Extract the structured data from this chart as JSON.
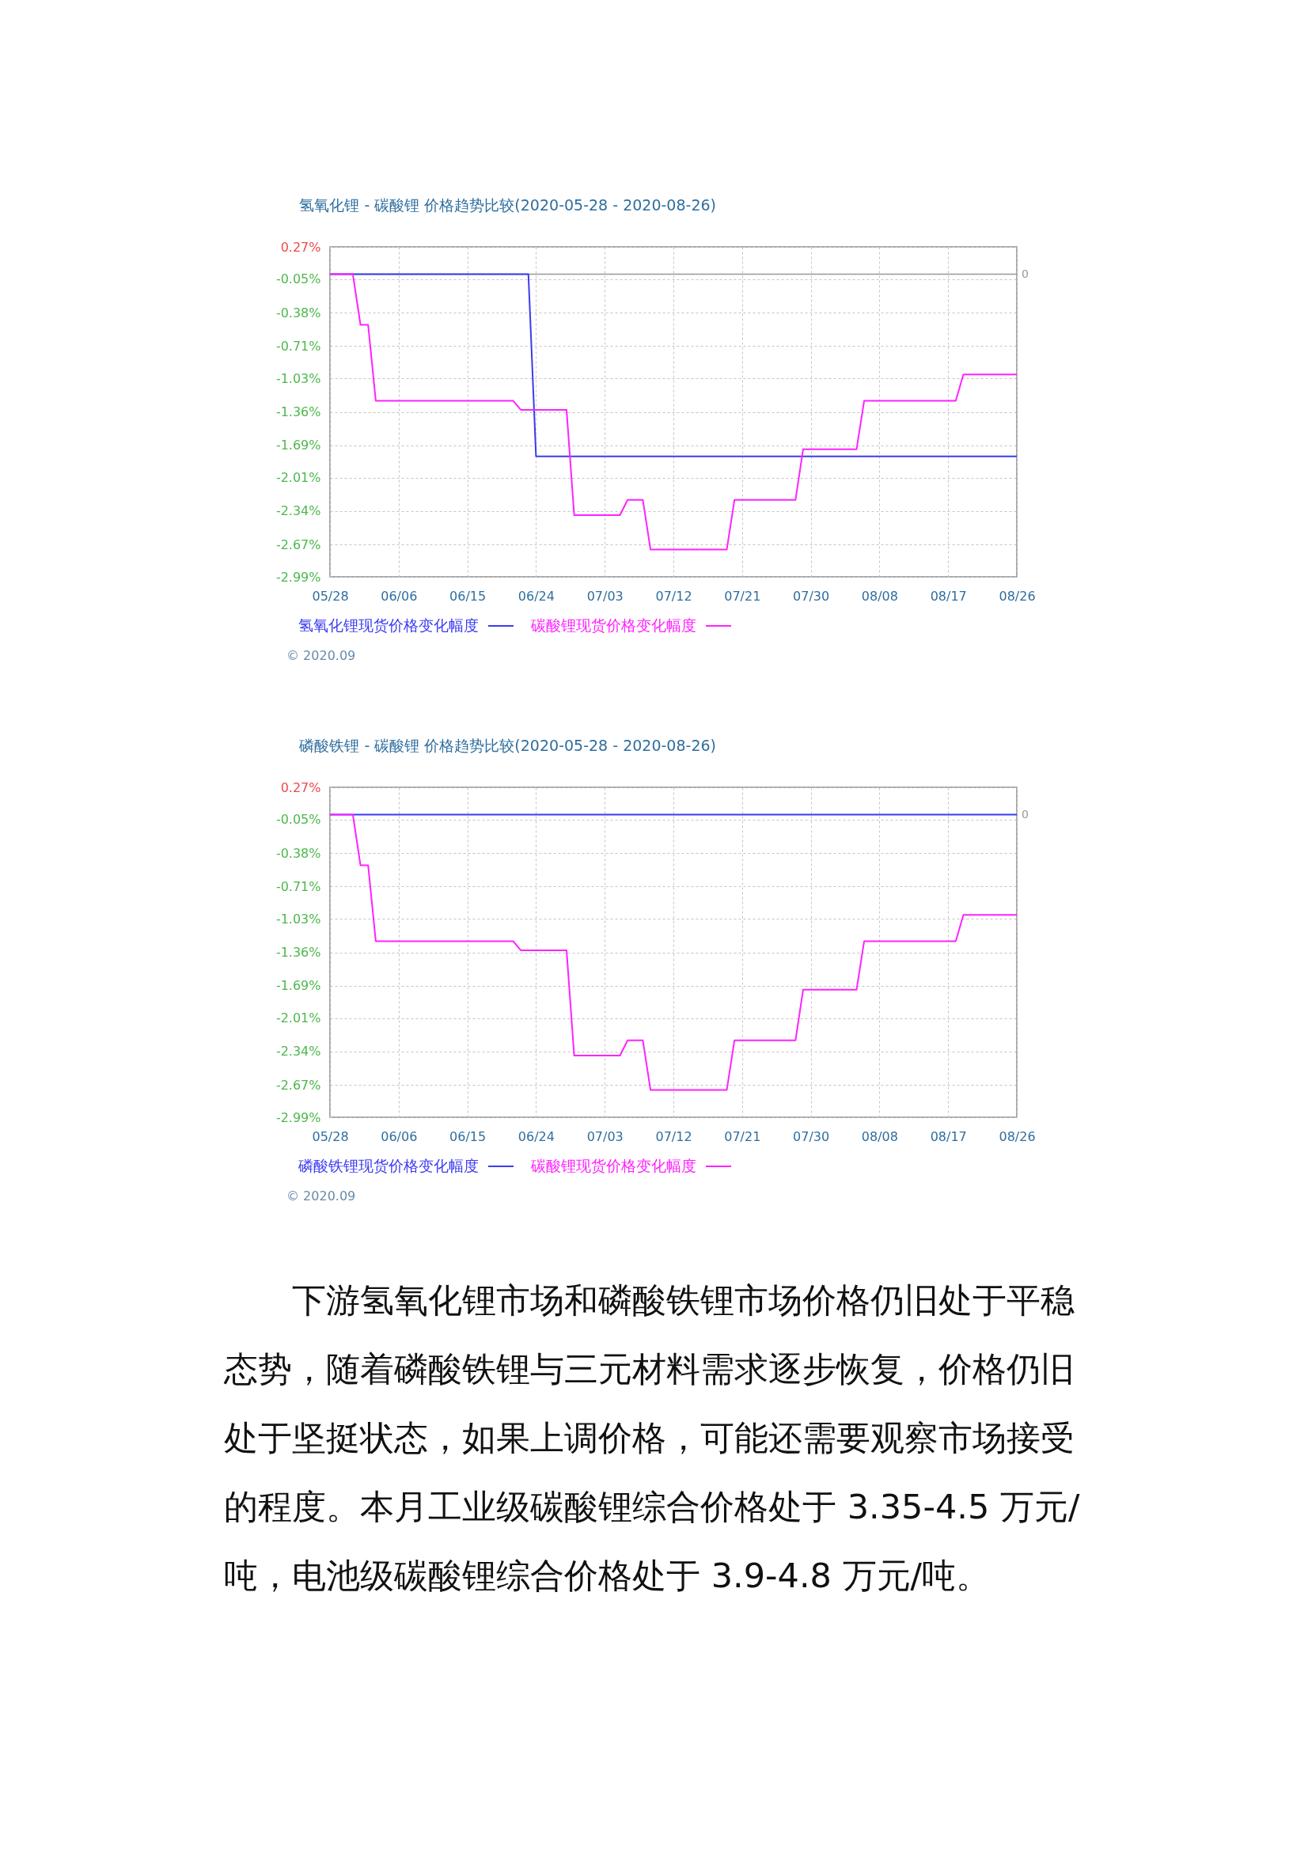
{
  "chart_data": [
    {
      "type": "line",
      "title": "氢氧化锂 - 碳酸锂 价格趋势比较(2020-05-28 - 2020-08-26)",
      "x": [
        "2020-05-28",
        "2020-05-31",
        "2020-06-01",
        "2020-06-02",
        "2020-06-03",
        "2020-06-21",
        "2020-06-22",
        "2020-06-28",
        "2020-06-29",
        "2020-07-05",
        "2020-07-06",
        "2020-07-08",
        "2020-07-09",
        "2020-07-19",
        "2020-07-20",
        "2020-07-28",
        "2020-07-29",
        "2020-08-05",
        "2020-08-06",
        "2020-08-18",
        "2020-08-19",
        "2020-08-26"
      ],
      "series": [
        {
          "name": "氢氧化锂现货价格变化幅度",
          "color": "#3b3bf2",
          "x": [
            "2020-05-28",
            "2020-06-23",
            "2020-06-24",
            "2020-08-26"
          ],
          "values": [
            0,
            0,
            -1.8,
            -1.8
          ]
        },
        {
          "name": "碳酸锂现货价格变化幅度",
          "color": "#ff22ff",
          "values": [
            0,
            0,
            -0.5,
            -0.5,
            -1.25,
            -1.25,
            -1.34,
            -1.34,
            -2.38,
            -2.38,
            -2.23,
            -2.23,
            -2.72,
            -2.72,
            -2.23,
            -2.23,
            -1.73,
            -1.73,
            -1.25,
            -1.25,
            -0.99,
            -0.99
          ]
        }
      ],
      "xlim": [
        "2020-05-28",
        "2020-08-26"
      ],
      "xticks": [
        {
          "value": "2020-05-28",
          "label": "05/28"
        },
        {
          "value": "2020-06-06",
          "label": "06/06"
        },
        {
          "value": "2020-06-15",
          "label": "06/15"
        },
        {
          "value": "2020-06-24",
          "label": "06/24"
        },
        {
          "value": "2020-07-03",
          "label": "07/03"
        },
        {
          "value": "2020-07-12",
          "label": "07/12"
        },
        {
          "value": "2020-07-21",
          "label": "07/21"
        },
        {
          "value": "2020-07-30",
          "label": "07/30"
        },
        {
          "value": "2020-08-08",
          "label": "08/08"
        },
        {
          "value": "2020-08-17",
          "label": "08/17"
        },
        {
          "value": "2020-08-26",
          "label": "08/26"
        }
      ],
      "ylim": [
        -2.99,
        0.27
      ],
      "yticks": [
        {
          "value": 0.27,
          "label": "0.27%"
        },
        {
          "value": -0.05,
          "label": "-0.05%"
        },
        {
          "value": -0.38,
          "label": "-0.38%"
        },
        {
          "value": -0.71,
          "label": "-0.71%"
        },
        {
          "value": -1.03,
          "label": "-1.03%"
        },
        {
          "value": -1.36,
          "label": "-1.36%"
        },
        {
          "value": -1.69,
          "label": "-1.69%"
        },
        {
          "value": -2.01,
          "label": "-2.01%"
        },
        {
          "value": -2.34,
          "label": "-2.34%"
        },
        {
          "value": -2.67,
          "label": "-2.67%"
        },
        {
          "value": -2.99,
          "label": "-2.99%"
        }
      ],
      "ref_lines": [
        {
          "axis": "y",
          "value": 0,
          "label": "0",
          "color": "#999999"
        }
      ],
      "grid": true,
      "legend": "bottom",
      "annotations": [
        "© 2020.09"
      ]
    },
    {
      "type": "line",
      "title": "磷酸铁锂 - 碳酸锂 价格趋势比较(2020-05-28 - 2020-08-26)",
      "x": [
        "2020-05-28",
        "2020-05-31",
        "2020-06-01",
        "2020-06-02",
        "2020-06-03",
        "2020-06-21",
        "2020-06-22",
        "2020-06-28",
        "2020-06-29",
        "2020-07-05",
        "2020-07-06",
        "2020-07-08",
        "2020-07-09",
        "2020-07-19",
        "2020-07-20",
        "2020-07-28",
        "2020-07-29",
        "2020-08-05",
        "2020-08-06",
        "2020-08-18",
        "2020-08-19",
        "2020-08-26"
      ],
      "series": [
        {
          "name": "磷酸铁锂现货价格变化幅度",
          "color": "#3b3bf2",
          "x": [
            "2020-05-28",
            "2020-08-26"
          ],
          "values": [
            0,
            0
          ]
        },
        {
          "name": "碳酸锂现货价格变化幅度",
          "color": "#ff22ff",
          "values": [
            0,
            0,
            -0.5,
            -0.5,
            -1.25,
            -1.25,
            -1.34,
            -1.34,
            -2.38,
            -2.38,
            -2.23,
            -2.23,
            -2.72,
            -2.72,
            -2.23,
            -2.23,
            -1.73,
            -1.73,
            -1.25,
            -1.25,
            -0.99,
            -0.99
          ]
        }
      ],
      "xlim": [
        "2020-05-28",
        "2020-08-26"
      ],
      "xticks": [
        {
          "value": "2020-05-28",
          "label": "05/28"
        },
        {
          "value": "2020-06-06",
          "label": "06/06"
        },
        {
          "value": "2020-06-15",
          "label": "06/15"
        },
        {
          "value": "2020-06-24",
          "label": "06/24"
        },
        {
          "value": "2020-07-03",
          "label": "07/03"
        },
        {
          "value": "2020-07-12",
          "label": "07/12"
        },
        {
          "value": "2020-07-21",
          "label": "07/21"
        },
        {
          "value": "2020-07-30",
          "label": "07/30"
        },
        {
          "value": "2020-08-08",
          "label": "08/08"
        },
        {
          "value": "2020-08-17",
          "label": "08/17"
        },
        {
          "value": "2020-08-26",
          "label": "08/26"
        }
      ],
      "ylim": [
        -2.99,
        0.27
      ],
      "yticks": [
        {
          "value": 0.27,
          "label": "0.27%"
        },
        {
          "value": -0.05,
          "label": "-0.05%"
        },
        {
          "value": -0.38,
          "label": "-0.38%"
        },
        {
          "value": -0.71,
          "label": "-0.71%"
        },
        {
          "value": -1.03,
          "label": "-1.03%"
        },
        {
          "value": -1.36,
          "label": "-1.36%"
        },
        {
          "value": -1.69,
          "label": "-1.69%"
        },
        {
          "value": -2.01,
          "label": "-2.01%"
        },
        {
          "value": -2.34,
          "label": "-2.34%"
        },
        {
          "value": -2.67,
          "label": "-2.67%"
        },
        {
          "value": -2.99,
          "label": "-2.99%"
        }
      ],
      "grid": true,
      "legend": "bottom",
      "annotations": [
        "© 2020.09",
        {
          "text": "0",
          "x": "2020-08-26",
          "y": 0
        }
      ]
    },
    {
      "type": "other",
      "annotations": [
        "下游氢氧化锂市场和磷酸铁锂市场价格仍旧处于平稳态势，随着磷酸铁锂与三元材料需求逐步恢复，价格仍旧处于坚挺状态，如果上调价格，可能还需要观察市场接受的程度。本月工业级碳酸锂综合价格处于 3.35-4.5 万元/吨，电池级碳酸锂综合价格处于 3.9-4.8 万元/吨。"
      ]
    }
  ]
}
